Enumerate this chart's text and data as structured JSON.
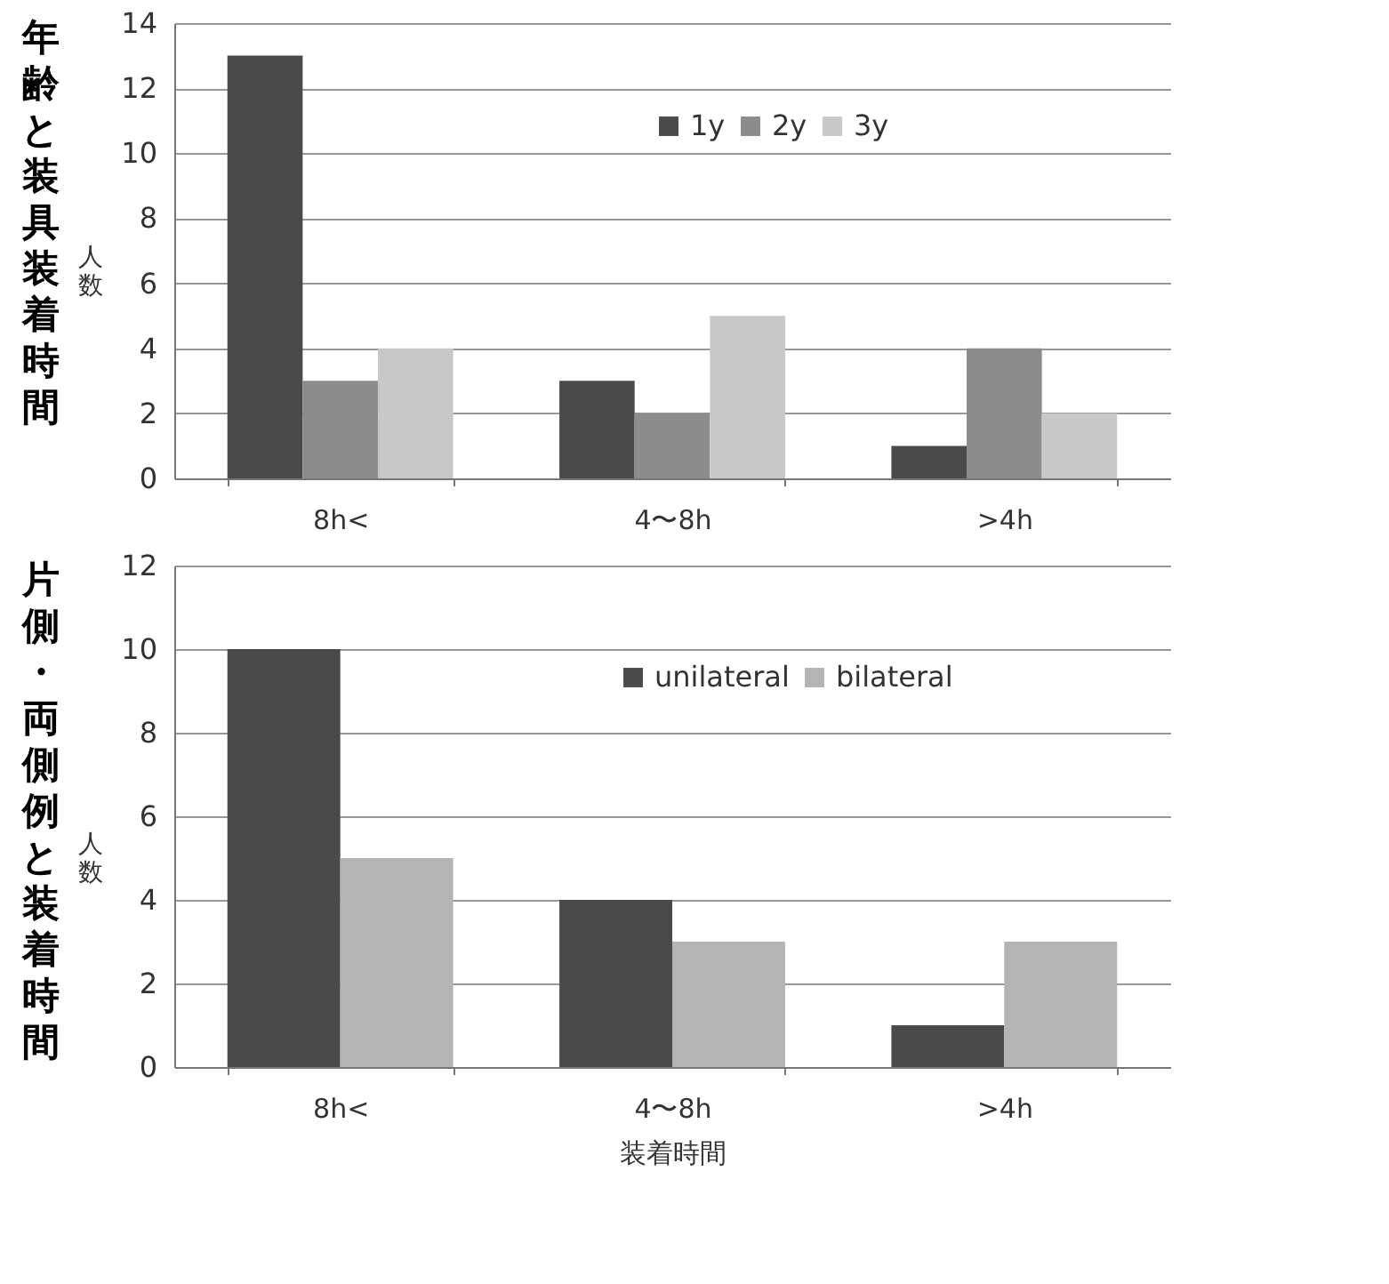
{
  "chart_data": [
    {
      "type": "bar",
      "title": "年齢と装具装着時間",
      "ylabel": "人数",
      "categories": [
        "8h<",
        "4〜8h",
        ">4h"
      ],
      "series": [
        {
          "name": "1y",
          "color": "#4a4a4a",
          "values": [
            13,
            3,
            1
          ]
        },
        {
          "name": "2y",
          "color": "#8c8c8c",
          "values": [
            3,
            2,
            4
          ]
        },
        {
          "name": "3y",
          "color": "#c8c8c8",
          "values": [
            4,
            5,
            2
          ]
        }
      ],
      "ylim": [
        0,
        14
      ],
      "yticks": [
        0,
        2,
        4,
        6,
        8,
        10,
        12,
        14
      ],
      "grid": "y",
      "legend": "top right"
    },
    {
      "type": "bar",
      "title": "片側・両側例と装着時間",
      "xlabel": "装着時間",
      "ylabel": "人数",
      "categories": [
        "8h<",
        "4〜8h",
        ">4h"
      ],
      "series": [
        {
          "name": "unilateral",
          "color": "#4a4a4a",
          "values": [
            10,
            4,
            1
          ]
        },
        {
          "name": "bilateral",
          "color": "#b4b4b4",
          "values": [
            5,
            3,
            3
          ]
        }
      ],
      "ylim": [
        0,
        12
      ],
      "yticks": [
        0,
        2,
        4,
        6,
        8,
        10,
        12
      ],
      "grid": "y",
      "legend": "top right"
    }
  ]
}
